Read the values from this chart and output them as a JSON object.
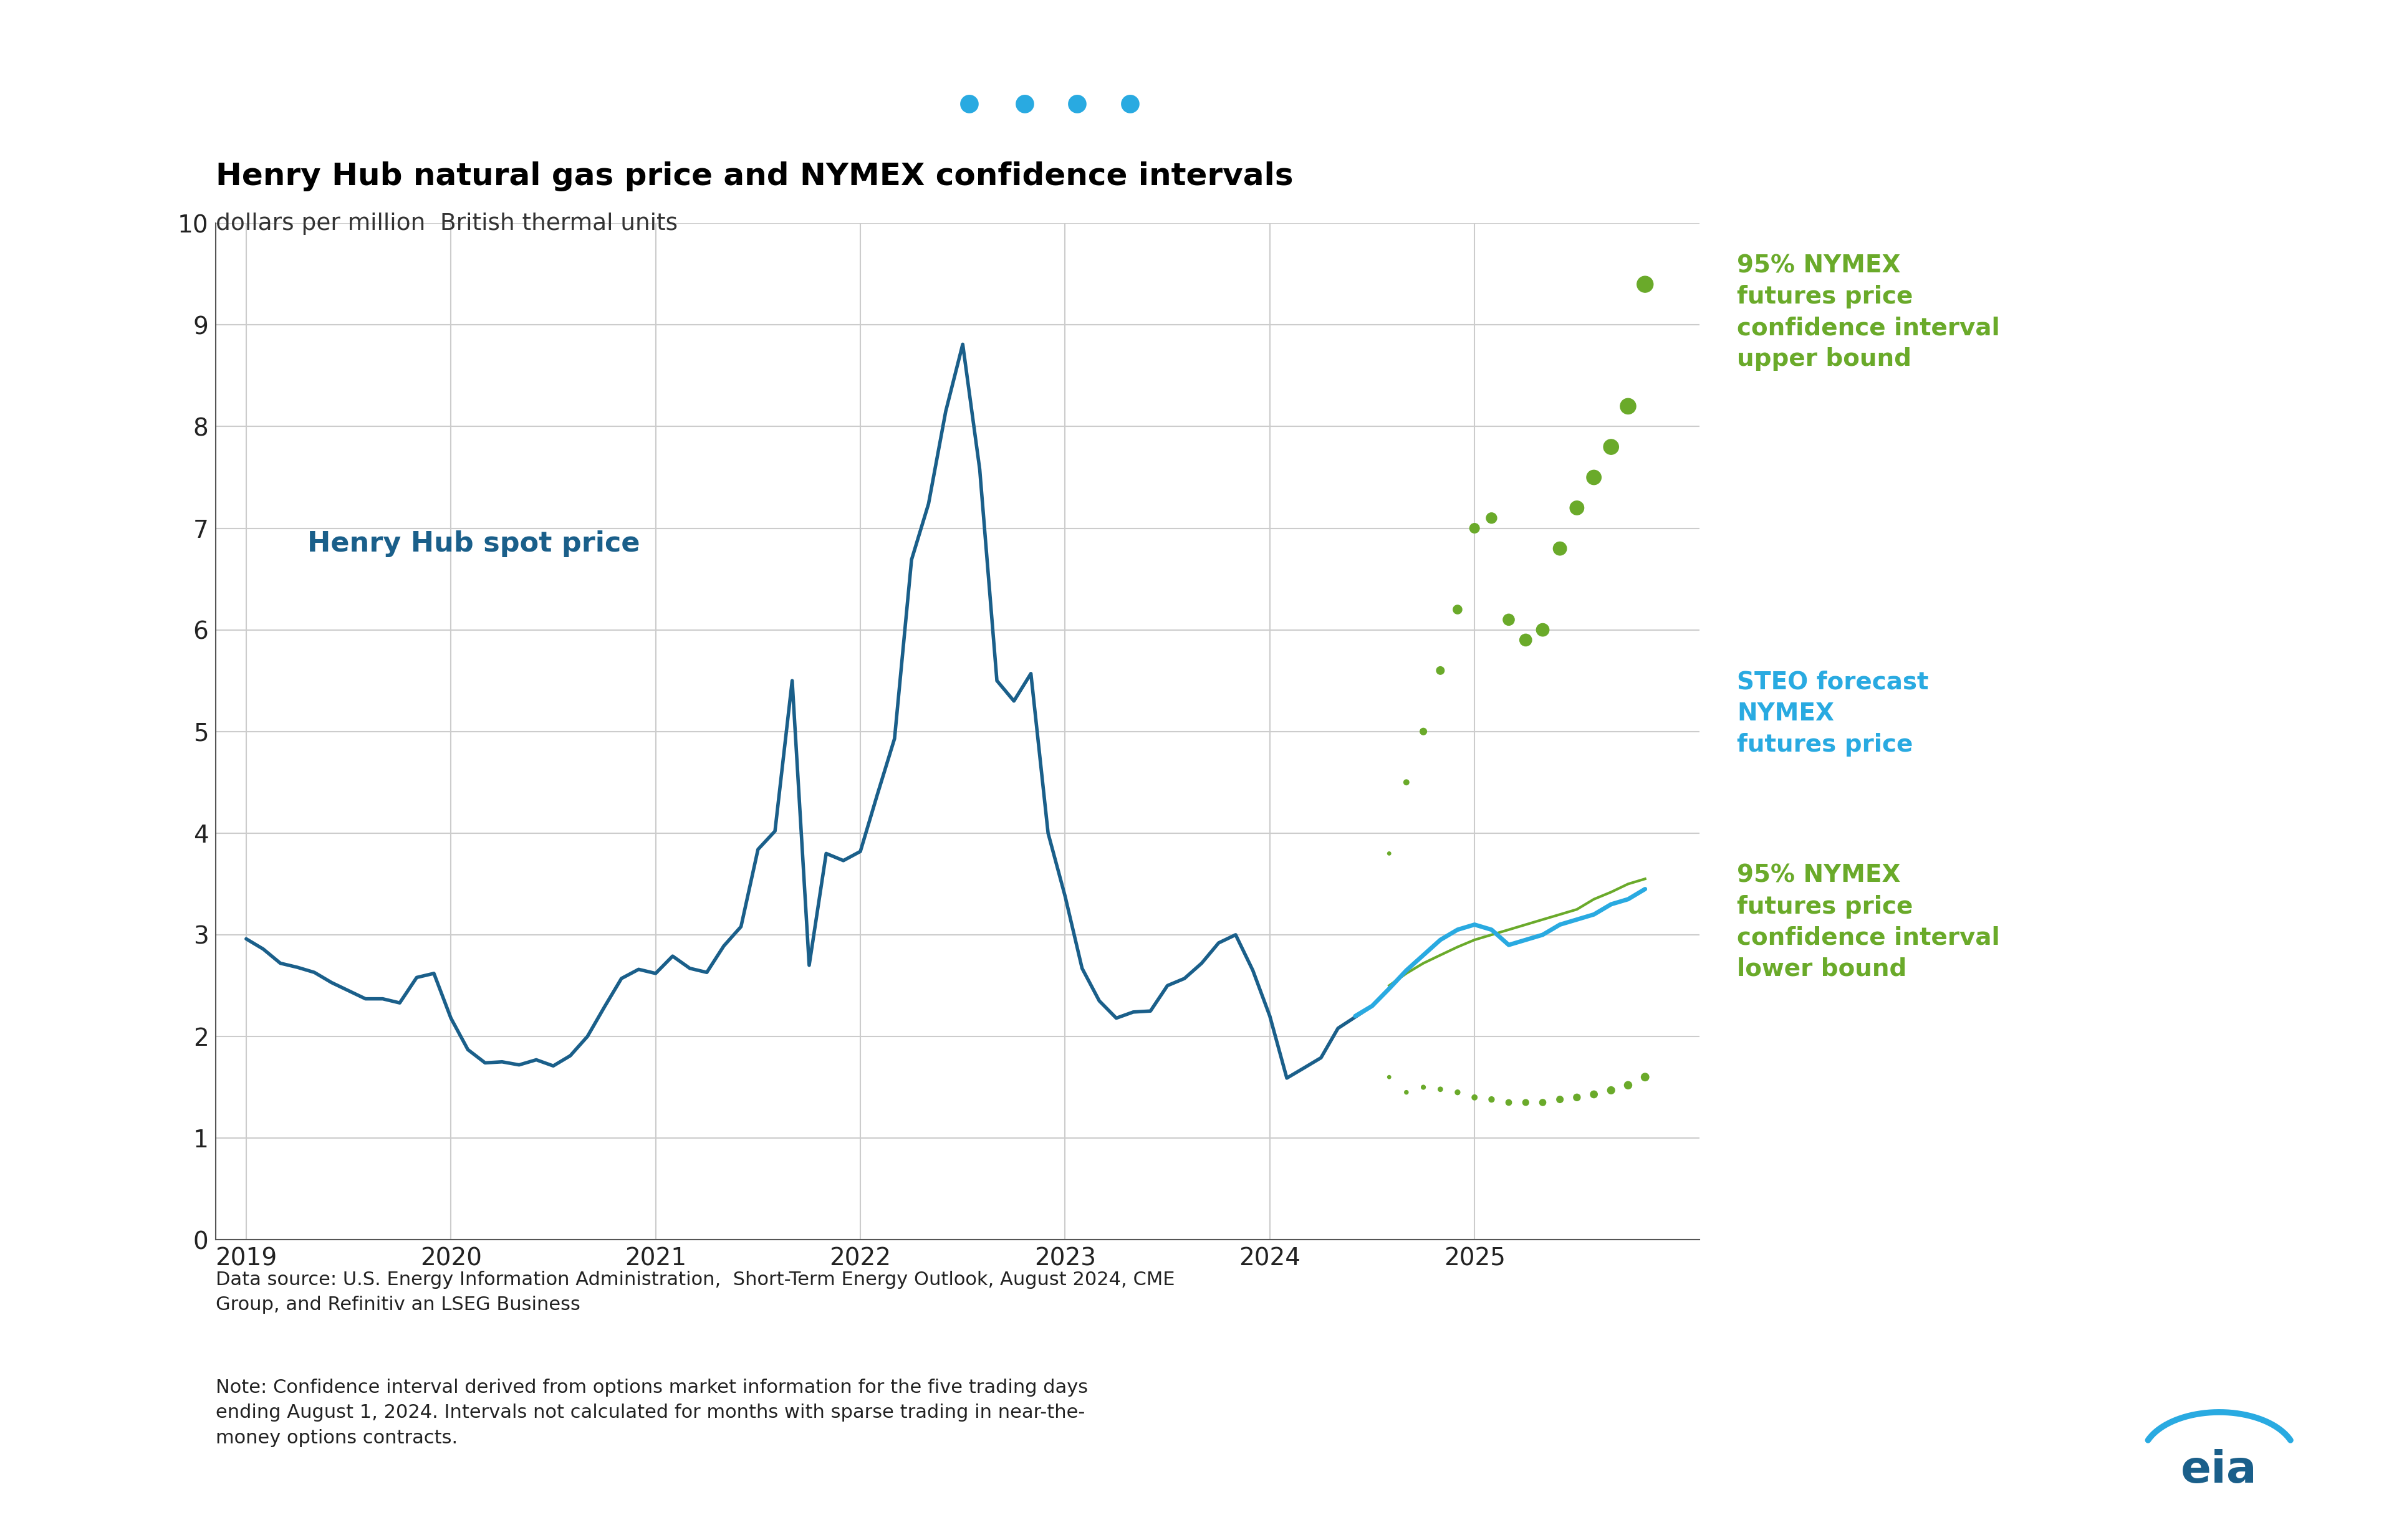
{
  "title": "Henry Hub natural gas price and NYMEX confidence intervals",
  "subtitle": "dollars per million  British thermal units",
  "background_color": "#ffffff",
  "header_bar_color": "#29aae1",
  "plot_bg_color": "#ffffff",
  "grid_color": "#cccccc",
  "ylim": [
    0,
    10
  ],
  "yticks": [
    0,
    1,
    2,
    3,
    4,
    5,
    6,
    7,
    8,
    9,
    10
  ],
  "henry_hub_color": "#1a5f8a",
  "steo_color": "#29aae1",
  "ci_color": "#6aaa2a",
  "datasource_text": "Data source: U.S. Energy Information Administration,  Short-Term Energy Outlook, August 2024, CME\nGroup, and Refinitiv an LSEG Business",
  "note_text": "Note: Confidence interval derived from options market information for the five trading days\nending August 1, 2024. Intervals not calculated for months with sparse trading in near-the-\nmoney options contracts.",
  "henry_hub_label": "Henry Hub spot price",
  "steo_label": "STEO forecast\nNYMEX\nfutures price",
  "upper_ci_label": "95% NYMEX\nfutures price\nconfidence interval\nupper bound",
  "lower_ci_label": "95% NYMEX\nfutures price\nconfidence interval\nlower bound",
  "henry_hub_x": [
    2019.0,
    2019.083,
    2019.167,
    2019.25,
    2019.333,
    2019.417,
    2019.5,
    2019.583,
    2019.667,
    2019.75,
    2019.833,
    2019.917,
    2020.0,
    2020.083,
    2020.167,
    2020.25,
    2020.333,
    2020.417,
    2020.5,
    2020.583,
    2020.667,
    2020.75,
    2020.833,
    2020.917,
    2021.0,
    2021.083,
    2021.167,
    2021.25,
    2021.333,
    2021.417,
    2021.5,
    2021.583,
    2021.667,
    2021.75,
    2021.833,
    2021.917,
    2022.0,
    2022.083,
    2022.167,
    2022.25,
    2022.333,
    2022.417,
    2022.5,
    2022.583,
    2022.667,
    2022.75,
    2022.833,
    2022.917,
    2023.0,
    2023.083,
    2023.167,
    2023.25,
    2023.333,
    2023.417,
    2023.5,
    2023.583,
    2023.667,
    2023.75,
    2023.833,
    2023.917,
    2024.0,
    2024.083,
    2024.167,
    2024.25,
    2024.333,
    2024.5
  ],
  "henry_hub_y": [
    2.96,
    2.86,
    2.72,
    2.68,
    2.63,
    2.53,
    2.45,
    2.37,
    2.37,
    2.33,
    2.58,
    2.62,
    2.18,
    1.87,
    1.74,
    1.75,
    1.72,
    1.77,
    1.71,
    1.81,
    2.0,
    2.29,
    2.57,
    2.66,
    2.62,
    2.79,
    2.67,
    2.63,
    2.89,
    3.08,
    3.84,
    4.02,
    5.5,
    2.7,
    3.8,
    3.73,
    3.82,
    4.38,
    4.93,
    6.69,
    7.24,
    8.15,
    8.81,
    7.58,
    5.5,
    5.3,
    5.57,
    4.0,
    3.38,
    2.67,
    2.35,
    2.18,
    2.24,
    2.25,
    2.5,
    2.57,
    2.72,
    2.92,
    3.0,
    2.65,
    2.2,
    1.59,
    1.69,
    1.79,
    2.08,
    2.3
  ],
  "steo_x": [
    2024.417,
    2024.5,
    2024.583,
    2024.667,
    2024.75,
    2024.833,
    2024.917,
    2025.0,
    2025.083,
    2025.167,
    2025.25,
    2025.333,
    2025.417,
    2025.5,
    2025.583,
    2025.667,
    2025.75,
    2025.833
  ],
  "steo_y": [
    2.2,
    2.3,
    2.47,
    2.65,
    2.8,
    2.95,
    3.05,
    3.1,
    3.05,
    2.9,
    2.95,
    3.0,
    3.1,
    3.15,
    3.2,
    3.3,
    3.35,
    3.45
  ],
  "upper_ci_x": [
    2024.583,
    2024.667,
    2024.75,
    2024.833,
    2024.917,
    2025.0,
    2025.083,
    2025.167,
    2025.25,
    2025.333,
    2025.417,
    2025.5,
    2025.583,
    2025.667,
    2025.75,
    2025.833
  ],
  "upper_ci_y": [
    3.8,
    4.5,
    5.0,
    5.6,
    6.2,
    7.0,
    7.1,
    6.1,
    5.9,
    6.0,
    6.8,
    7.2,
    7.5,
    7.8,
    8.2,
    9.4
  ],
  "lower_ci_x": [
    2024.583,
    2024.667,
    2024.75,
    2024.833,
    2024.917,
    2025.0,
    2025.083,
    2025.167,
    2025.25,
    2025.333,
    2025.417,
    2025.5,
    2025.583,
    2025.667,
    2025.75,
    2025.833
  ],
  "lower_ci_y": [
    1.6,
    1.45,
    1.5,
    1.48,
    1.45,
    1.4,
    1.38,
    1.35,
    1.35,
    1.35,
    1.38,
    1.4,
    1.43,
    1.47,
    1.52,
    1.6
  ]
}
